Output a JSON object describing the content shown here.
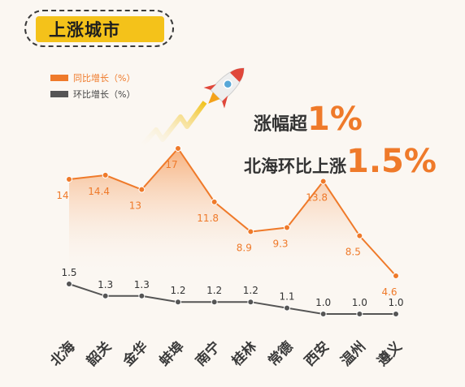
{
  "badge": {
    "title": "上涨城市"
  },
  "legend": {
    "yoy": {
      "label": "同比增长（%）",
      "color": "#ef7a2a"
    },
    "mom": {
      "label": "环比增长（%）",
      "color": "#555555"
    }
  },
  "headline": {
    "line1_prefix": "涨幅超",
    "line1_value": "1%",
    "line2_prefix": "北海环比上涨",
    "line2_value": "1.5%"
  },
  "chart_data": {
    "type": "line",
    "categories": [
      "北海",
      "韶关",
      "金华",
      "蚌埠",
      "南宁",
      "桂林",
      "常德",
      "西安",
      "温州",
      "遵义"
    ],
    "series": [
      {
        "name": "同比增长（%）",
        "color": "#ef7a2a",
        "values": [
          14,
          14.4,
          13,
          17,
          11.8,
          8.9,
          9.3,
          13.8,
          8.5,
          4.6
        ],
        "labels": [
          "14",
          "14.4",
          "13",
          "17",
          "11.8",
          "8.9",
          "9.3",
          "13.8",
          "8.5",
          "4.6"
        ]
      },
      {
        "name": "环比增长（%）",
        "color": "#555555",
        "values": [
          1.5,
          1.3,
          1.3,
          1.2,
          1.2,
          1.2,
          1.1,
          1.0,
          1.0,
          1.0
        ],
        "labels": [
          "1.5",
          "1.3",
          "1.3",
          "1.2",
          "1.2",
          "1.2",
          "1.1",
          "1.0",
          "1.0",
          "1.0"
        ]
      }
    ],
    "title": "",
    "xlabel": "",
    "ylabel": "",
    "grid": false
  }
}
